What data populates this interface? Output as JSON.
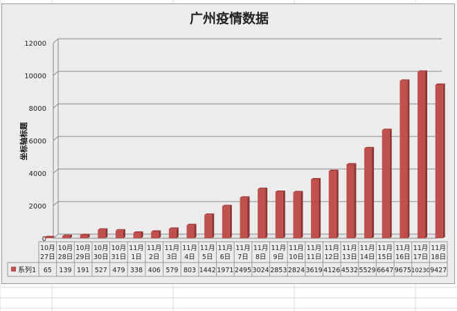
{
  "chart_data": {
    "type": "bar",
    "title": "广州疫情数据",
    "ylabel": "坐标轴标题",
    "xlabel": "",
    "ylim": [
      0,
      12000
    ],
    "yticks": [
      0,
      2000,
      4000,
      6000,
      8000,
      10000,
      12000
    ],
    "grid": true,
    "style": "3d-column with data table",
    "categories": [
      "10月27日",
      "10月28日",
      "10月29日",
      "10月30日",
      "10月31日",
      "11月1日",
      "11月2日",
      "11月3日",
      "11月4日",
      "11月5日",
      "11月6日",
      "11月7日",
      "11月8日",
      "11月9日",
      "11月10日",
      "11月11日",
      "11月12日",
      "11月13日",
      "11月14日",
      "11月15日",
      "11月16日",
      "11月17日",
      "11月18日"
    ],
    "series": [
      {
        "name": "系列1",
        "color": "#c0504d",
        "values": [
          65,
          139,
          191,
          527,
          479,
          338,
          406,
          579,
          803,
          1442,
          1971,
          2495,
          3024,
          2853,
          2824,
          3619,
          4126,
          4532,
          5529,
          6647,
          9675,
          10230,
          9427
        ]
      }
    ]
  }
}
